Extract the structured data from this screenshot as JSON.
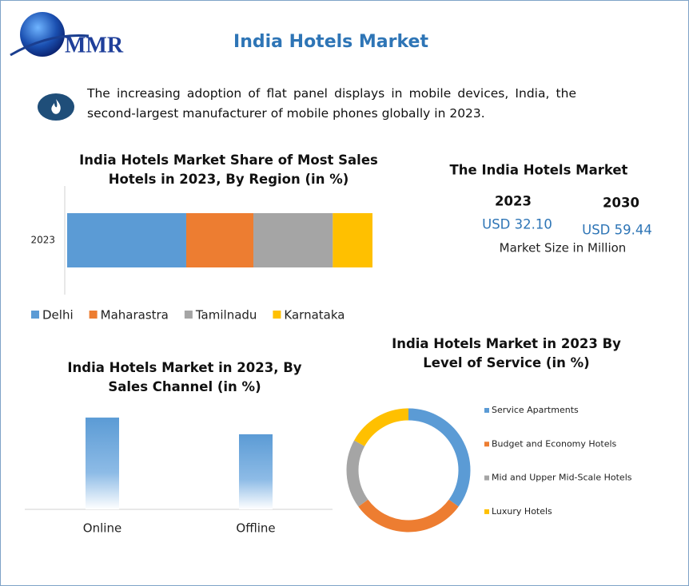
{
  "header": {
    "title": "India Hotels Market",
    "logo_text": "MMR"
  },
  "intro": "The increasing adoption of flat panel displays in mobile devices, India, the second-largest manufacturer of mobile phones globally in 2023.",
  "market_size": {
    "title": "The India Hotels Market",
    "year_1": "2023",
    "value_1": "USD 32.10",
    "year_2": "2030",
    "value_2": "USD 59.44",
    "unit": "Market Size in Million"
  },
  "chart_data": [
    {
      "type": "stacked_bar",
      "title": "India Hotels Market Share of Most Sales Hotels in 2023, By Region (in %)",
      "categories": [
        "2023"
      ],
      "series": [
        {
          "name": "Delhi",
          "color": "#5b9bd5",
          "values": [
            39
          ]
        },
        {
          "name": "Maharastra",
          "color": "#ed7d31",
          "values": [
            22
          ]
        },
        {
          "name": "Tamilnadu",
          "color": "#a5a5a5",
          "values": [
            26
          ]
        },
        {
          "name": "Karnataka",
          "color": "#ffc000",
          "values": [
            13
          ]
        }
      ],
      "legend": "bottom"
    },
    {
      "type": "bar",
      "title": "India Hotels Market in 2023, By Sales Channel (in %)",
      "categories": [
        "Online",
        "Offline"
      ],
      "values": [
        55,
        45
      ],
      "color": "#5b9bd5"
    },
    {
      "type": "donut",
      "title": "India Hotels Market in 2023 By Level of Service (in %)",
      "categories": [
        "Service Apartments",
        "Budget and Economy Hotels",
        "Mid and Upper Mid-Scale Hotels",
        "Luxury Hotels"
      ],
      "values": [
        35,
        30,
        18,
        17
      ],
      "colors": [
        "#5b9bd5",
        "#ed7d31",
        "#a5a5a5",
        "#ffc000"
      ],
      "legend": "right"
    }
  ]
}
